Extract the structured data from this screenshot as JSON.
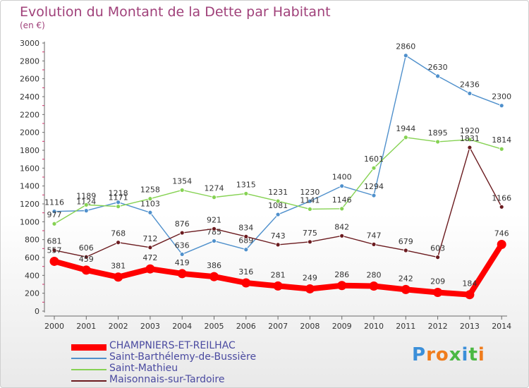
{
  "chart_data": {
    "type": "line",
    "title": "Evolution du Montant de la Dette par Habitant",
    "subtitle": "(en €)",
    "xlabel": "",
    "ylabel": "",
    "ylim": [
      0,
      3000
    ],
    "y_ticks": [
      0,
      200,
      400,
      600,
      800,
      1000,
      1200,
      1400,
      1600,
      1800,
      2000,
      2200,
      2400,
      2600,
      2800,
      3000
    ],
    "grid": false,
    "legend_position": "bottom-left",
    "categories": [
      "2000",
      "2001",
      "2002",
      "2003",
      "2004",
      "2005",
      "2006",
      "2007",
      "2008",
      "2009",
      "2010",
      "2011",
      "2012",
      "2013",
      "2014"
    ],
    "series": [
      {
        "name": "Saint-Barthélemy-de-Bussière",
        "color": "#4f90cc",
        "values": [
          1116,
          1124,
          1218,
          1103,
          636,
          785,
          689,
          1081,
          1230,
          1400,
          1294,
          2860,
          2630,
          2436,
          2300
        ]
      },
      {
        "name": "Saint-Mathieu",
        "color": "#86d253",
        "values": [
          977,
          1189,
          1171,
          1258,
          1354,
          1274,
          1315,
          1231,
          1141,
          1146,
          1601,
          1944,
          1895,
          1920,
          1814
        ]
      },
      {
        "name": "Maisonnais-sur-Tardoire",
        "color": "#6b1b1f",
        "values": [
          681,
          606,
          768,
          712,
          876,
          921,
          834,
          743,
          775,
          842,
          747,
          679,
          603,
          1831,
          1166
        ]
      },
      {
        "name": "CHAMPNIERS-ET-REILHAC",
        "color": "#ff0000",
        "values": [
          557,
          459,
          381,
          472,
          419,
          386,
          316,
          281,
          249,
          286,
          280,
          242,
          209,
          184,
          746
        ]
      }
    ]
  },
  "logo": {
    "text": "Proxiti",
    "letters": [
      "P",
      "r",
      "o",
      "x",
      "i",
      "t",
      "i"
    ]
  }
}
